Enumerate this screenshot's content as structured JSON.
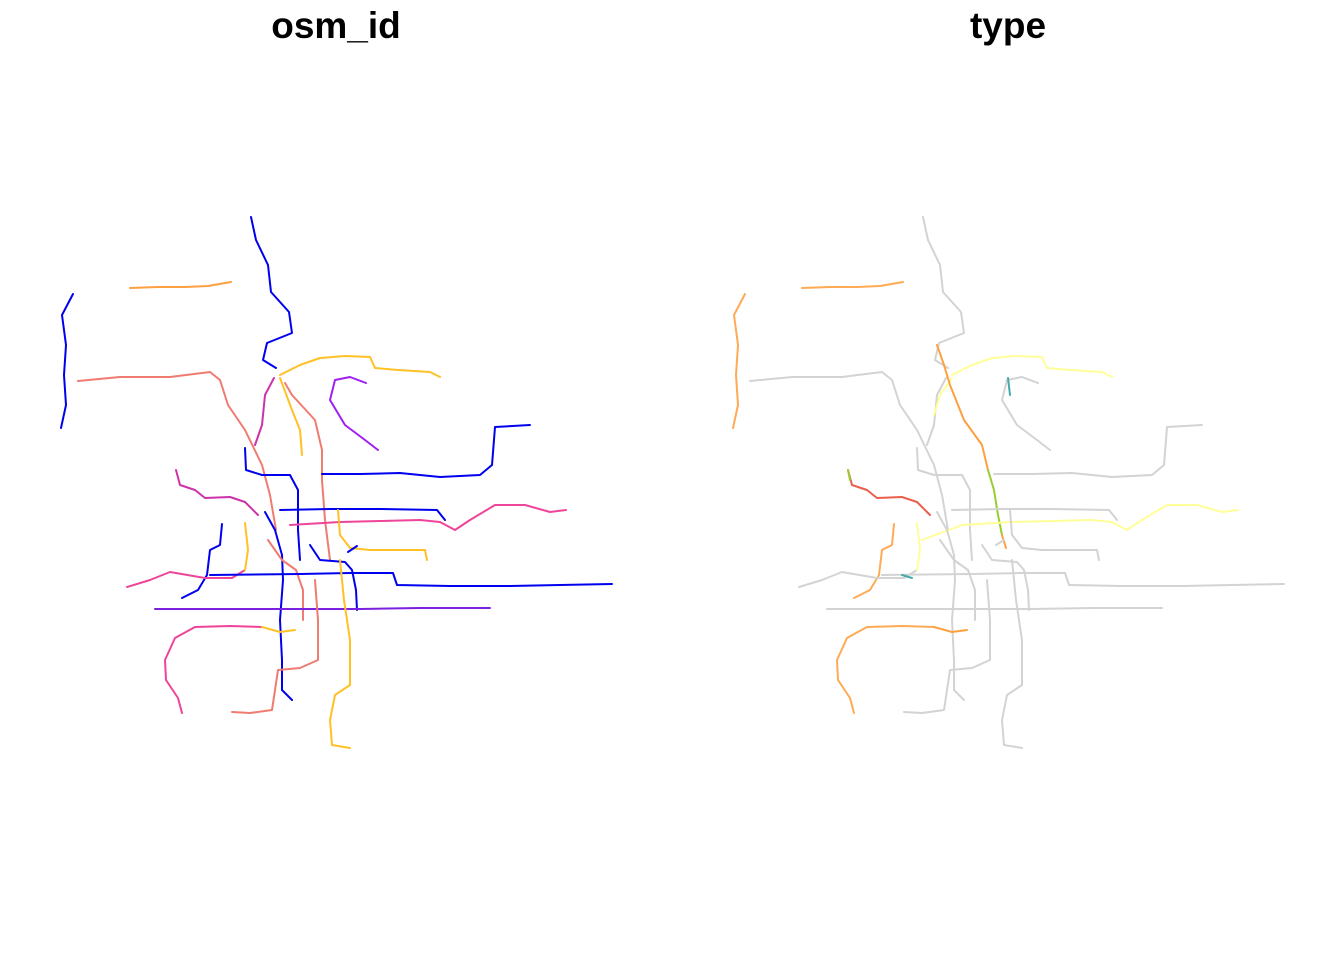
{
  "panels": [
    {
      "title": "osm_id"
    },
    {
      "title": "type"
    }
  ],
  "palette": {
    "blue": "#0000ee",
    "violet": "#7b1fe0",
    "purple": "#a020f0",
    "magenta": "#cc33aa",
    "pink": "#ee4499",
    "salmon": "#f07b70",
    "orange": "#ffa040",
    "gold": "#ffc125",
    "gray": "#d3d3d3",
    "paleyellow": "#ffff99",
    "red": "#e8604c",
    "green": "#99cc33",
    "teal": "#44aaaa",
    "lightorange": "#ffaa55"
  }
}
